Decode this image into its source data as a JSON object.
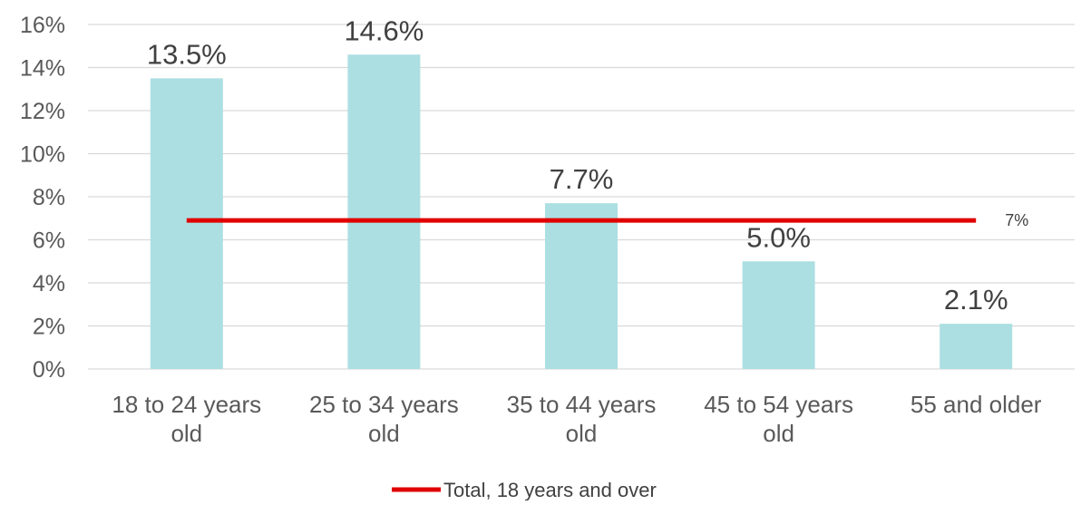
{
  "chart_data": {
    "type": "bar",
    "categories": [
      [
        "18 to 24 years",
        "old"
      ],
      [
        "25 to 34 years",
        "old"
      ],
      [
        "35 to 44 years",
        "old"
      ],
      [
        "45 to 54 years",
        "old"
      ],
      [
        "55 and older"
      ]
    ],
    "series": [
      {
        "type": "bar",
        "values": [
          13.5,
          14.6,
          7.7,
          5.0,
          2.1
        ],
        "data_labels": [
          "13.5%",
          "14.6%",
          "7.7%",
          "5.0%",
          "2.1%"
        ],
        "color": "#acdfe2"
      },
      {
        "type": "line",
        "name": "Total, 18 years and over",
        "values": [
          6.9,
          6.9,
          6.9,
          6.9,
          6.9
        ],
        "end_label": "7%",
        "color": "#e00000"
      }
    ],
    "y_ticks": [
      "0%",
      "2%",
      "4%",
      "6%",
      "8%",
      "10%",
      "12%",
      "14%",
      "16%"
    ],
    "ylim": [
      0,
      16
    ],
    "title": "",
    "xlabel": "",
    "ylabel": "",
    "grid": "horizontal",
    "legend_position": "bottom-center",
    "colors": {
      "bars": "#acdfe2",
      "line": "#e00000",
      "grid": "#d9d9d9",
      "text": "#595959"
    }
  }
}
